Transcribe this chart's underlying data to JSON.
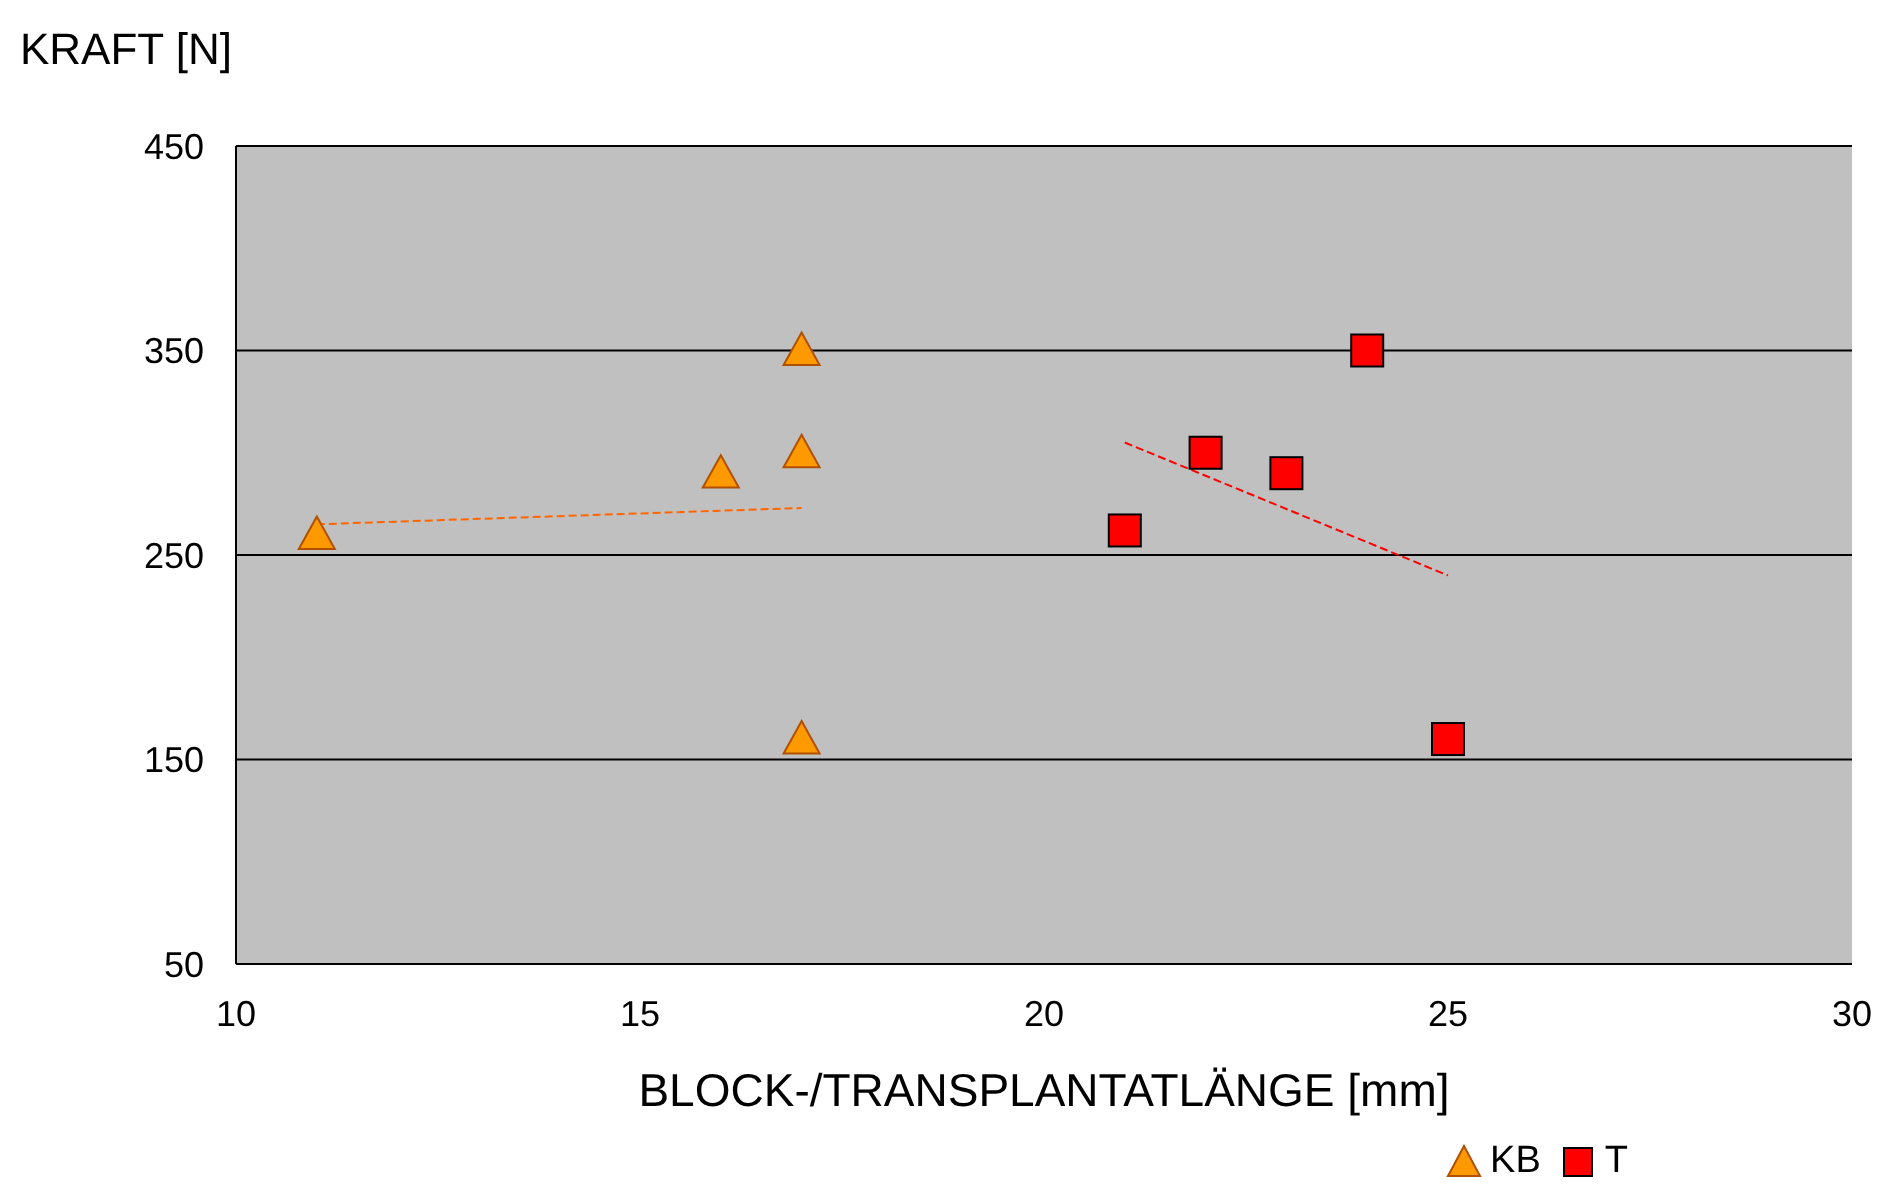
{
  "chart_data": {
    "type": "scatter",
    "xlabel": "BLOCK-/TRANSPLANTATLÄNGE [mm]",
    "ylabel": "KRAFT [N]",
    "xlim": [
      10,
      30
    ],
    "xticks": [
      10,
      15,
      20,
      25,
      30
    ],
    "ylim": [
      50,
      450
    ],
    "yticks": [
      50,
      150,
      250,
      350,
      450
    ],
    "grid": "y",
    "legend": "bottom right",
    "series": [
      {
        "name": "KB",
        "color": "#ff9900",
        "marker": "triangle",
        "x": [
          11,
          16,
          17,
          17,
          17
        ],
        "values": [
          260,
          290,
          300,
          350,
          160
        ]
      },
      {
        "name": "T",
        "color": "#ff0000",
        "marker": "square",
        "x": [
          21,
          22,
          23,
          24,
          25
        ],
        "values": [
          262,
          300,
          290,
          350,
          160
        ]
      },
      {
        "type": "line",
        "color": "#ff6600",
        "marker": "none",
        "line_style": "dashed",
        "x": [
          11,
          17
        ],
        "values": [
          265,
          273
        ]
      },
      {
        "type": "line",
        "color": "#ff0000",
        "marker": "none",
        "line_style": "dashed",
        "x": [
          21,
          25
        ],
        "values": [
          305,
          240
        ]
      }
    ]
  }
}
